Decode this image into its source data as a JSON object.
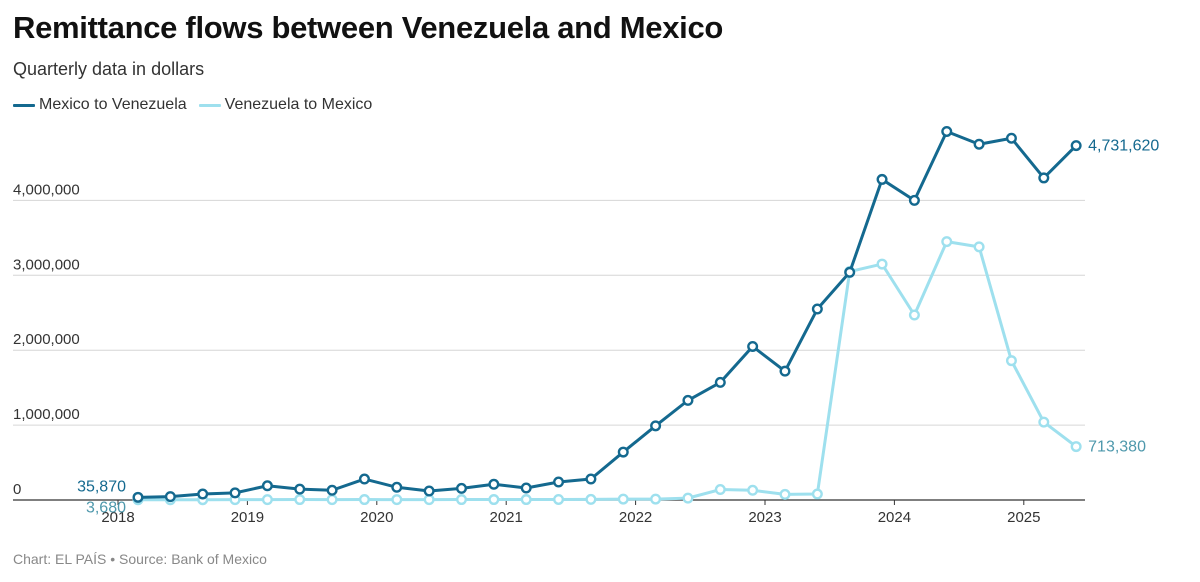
{
  "title": "Remittance flows between Venezuela and Mexico",
  "subtitle": "Quarterly data in dollars",
  "footer": "Chart: EL PAÍS • Source: Bank of Mexico",
  "colors": {
    "dark": "#14698f",
    "light": "#9ee0ee",
    "grid": "#d6d6d6",
    "axis": "#333333"
  },
  "chart_data": {
    "type": "line",
    "x": [
      "2018-Q1",
      "2018-Q2",
      "2018-Q3",
      "2018-Q4",
      "2019-Q1",
      "2019-Q2",
      "2019-Q3",
      "2019-Q4",
      "2020-Q1",
      "2020-Q2",
      "2020-Q3",
      "2020-Q4",
      "2021-Q1",
      "2021-Q2",
      "2021-Q3",
      "2021-Q4",
      "2022-Q1",
      "2022-Q2",
      "2022-Q3",
      "2022-Q4",
      "2023-Q1",
      "2023-Q2",
      "2023-Q3",
      "2023-Q4",
      "2024-Q1",
      "2024-Q2",
      "2024-Q3",
      "2024-Q4",
      "2025-Q1",
      "2025-Q2"
    ],
    "series": [
      {
        "name": "Mexico to Venezuela",
        "color": "#14698f",
        "values": [
          35870,
          45000,
          80000,
          95000,
          190000,
          145000,
          130000,
          280000,
          170000,
          120000,
          155000,
          210000,
          160000,
          240000,
          280000,
          640000,
          990000,
          1330000,
          1570000,
          2050000,
          1720000,
          2550000,
          3040000,
          4280000,
          4000000,
          4920000,
          4750000,
          4830000,
          4300000,
          4731620
        ],
        "end_label": "4,731,620",
        "start_label": "35,870"
      },
      {
        "name": "Venezuela to Mexico",
        "color": "#9ee0ee",
        "values": [
          3680,
          4000,
          4000,
          5000,
          5000,
          6000,
          5000,
          6000,
          5000,
          5000,
          6000,
          6000,
          6000,
          7000,
          8000,
          12000,
          12000,
          25000,
          140000,
          130000,
          75000,
          80000,
          3050000,
          3150000,
          2470000,
          3450000,
          3380000,
          1860000,
          1040000,
          713380
        ],
        "end_label": "713,380",
        "start_label": "3,680"
      }
    ],
    "ylim": [
      0,
      5000000
    ],
    "yticks": [
      0,
      1000000,
      2000000,
      3000000,
      4000000
    ],
    "ytick_labels": [
      "0",
      "1,000,000",
      "2,000,000",
      "3,000,000",
      "4,000,000"
    ],
    "xtick_labels": [
      "2018",
      "2019",
      "2020",
      "2021",
      "2022",
      "2023",
      "2024",
      "2025"
    ],
    "grid": true,
    "legend_position": "top-left"
  }
}
